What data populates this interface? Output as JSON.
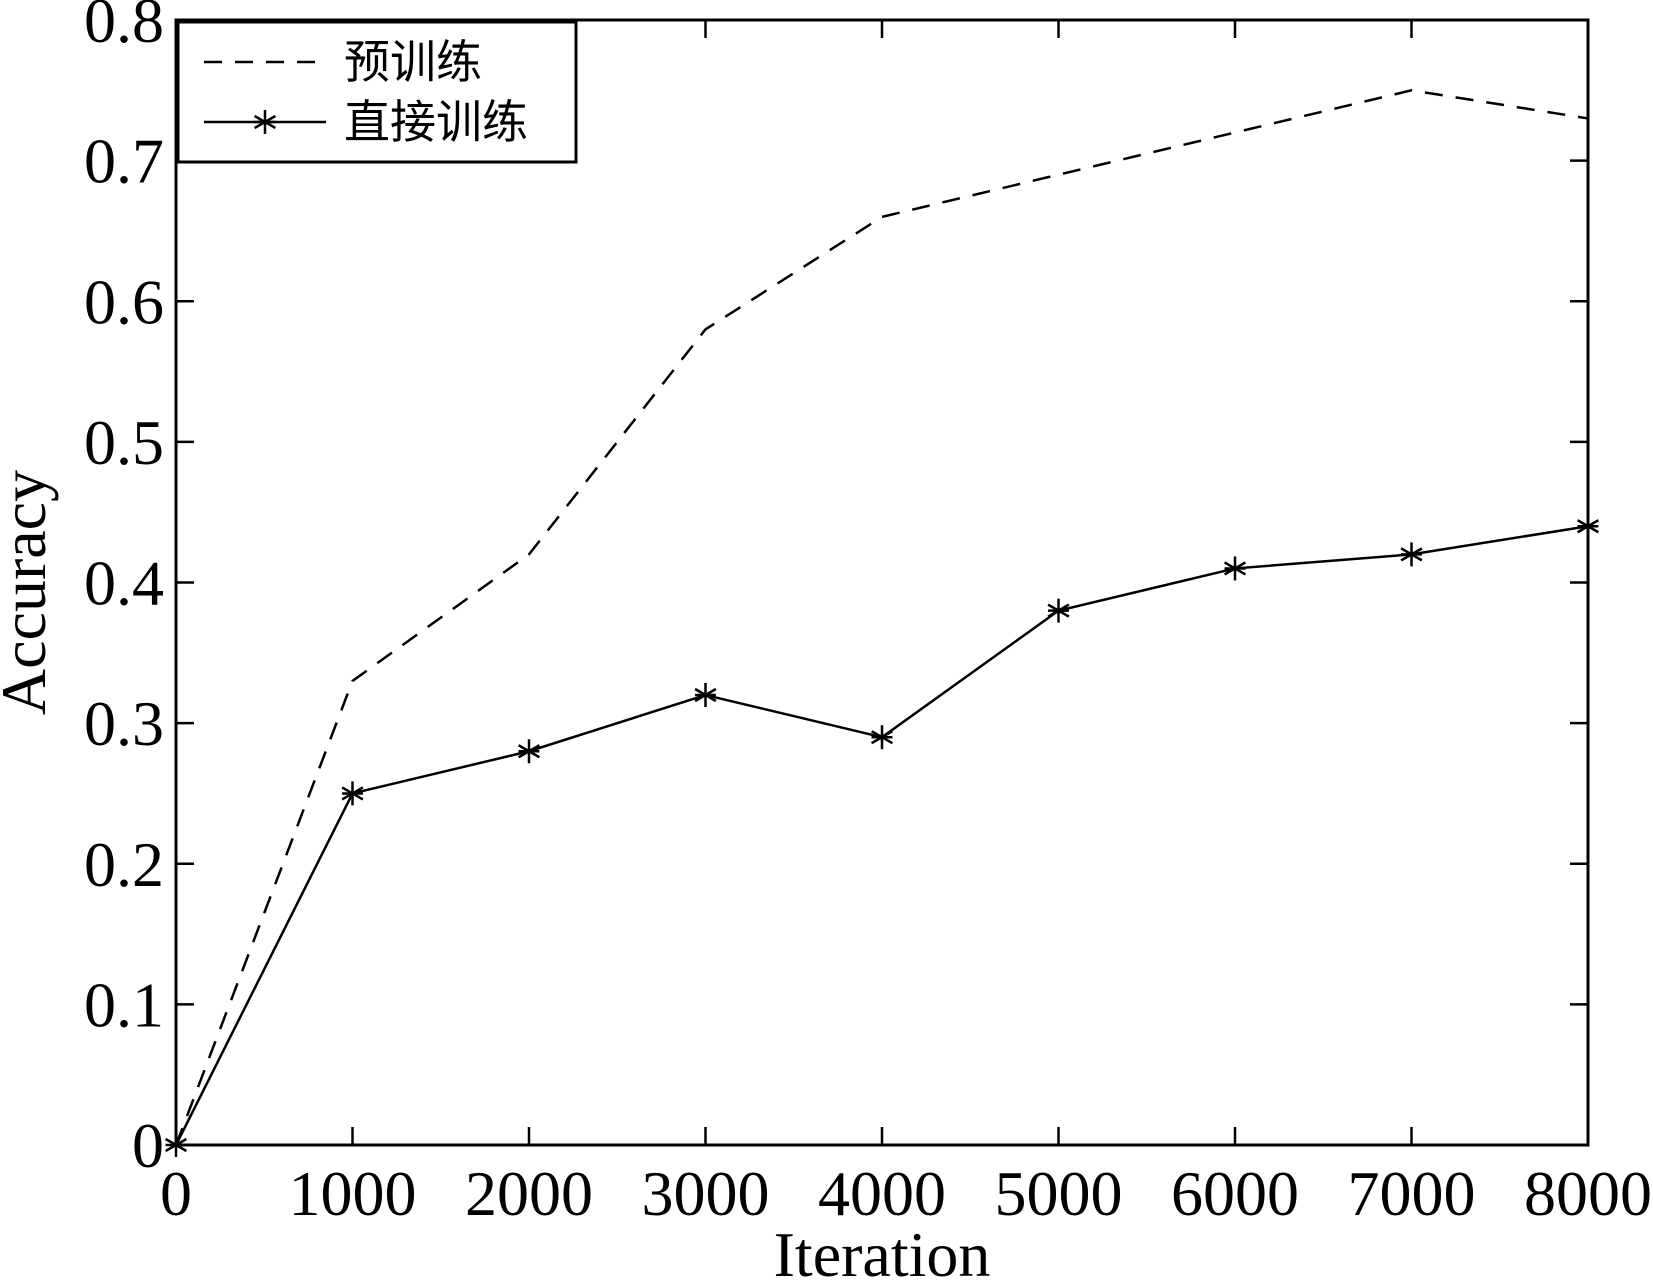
{
  "chart_data": {
    "type": "line",
    "xlabel": "Iteration",
    "ylabel": "Accuracy",
    "xlim": [
      0,
      8000
    ],
    "ylim": [
      0,
      0.8
    ],
    "x_ticks": [
      0,
      1000,
      2000,
      3000,
      4000,
      5000,
      6000,
      7000,
      8000
    ],
    "x_tick_labels": [
      "0",
      "1000",
      "2000",
      "3000",
      "4000",
      "5000",
      "6000",
      "7000",
      "8000"
    ],
    "y_ticks": [
      0,
      0.1,
      0.2,
      0.3,
      0.4,
      0.5,
      0.6,
      0.7,
      0.8
    ],
    "y_tick_labels": [
      "0",
      "0.1",
      "0.2",
      "0.3",
      "0.4",
      "0.5",
      "0.6",
      "0.7",
      "0.8"
    ],
    "grid": false,
    "legend_position": "top-left",
    "x": [
      0,
      1000,
      2000,
      3000,
      4000,
      5000,
      6000,
      7000,
      8000
    ],
    "series": [
      {
        "name": "预训练",
        "style": "dashed",
        "marker": "none",
        "color": "#000000",
        "values": [
          0,
          0.33,
          0.42,
          0.58,
          0.66,
          0.69,
          0.72,
          0.75,
          0.73
        ]
      },
      {
        "name": "直接训练",
        "style": "solid",
        "marker": "asterisk",
        "color": "#000000",
        "values": [
          0,
          0.25,
          0.28,
          0.32,
          0.29,
          0.38,
          0.41,
          0.42,
          0.44
        ]
      }
    ]
  }
}
